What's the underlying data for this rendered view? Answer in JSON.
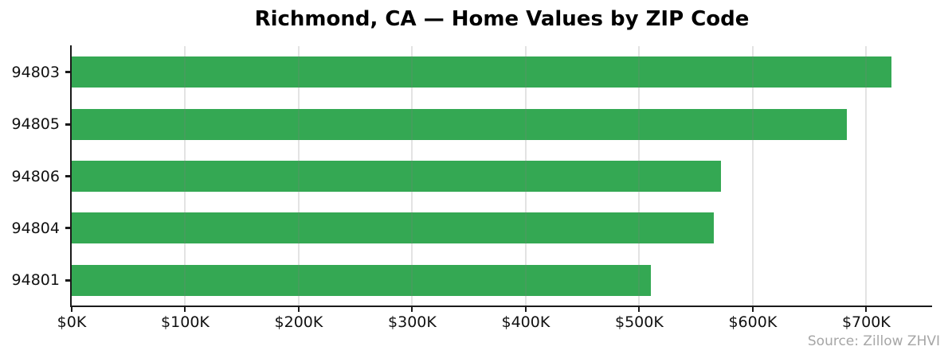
{
  "chart_data": {
    "type": "bar",
    "orientation": "horizontal",
    "title": "Richmond, CA — Home Values by ZIP Code",
    "categories": [
      "94803",
      "94805",
      "94806",
      "94804",
      "94801"
    ],
    "values": [
      722000,
      683000,
      572000,
      566000,
      510000
    ],
    "xlabel": "",
    "ylabel": "",
    "xlim": [
      0,
      758000
    ],
    "xticks": [
      0,
      100000,
      200000,
      300000,
      400000,
      500000,
      600000,
      700000
    ],
    "xtick_labels": [
      "$0K",
      "$100K",
      "$200K",
      "$300K",
      "$400K",
      "$500K",
      "$600K",
      "$700K"
    ],
    "grid": true,
    "legend": false,
    "source_note": "Source: Zillow ZHVI"
  },
  "colors": {
    "bar": "#34a853",
    "axis": "#1a1a1a",
    "grid": "rgba(128,128,128,0.22)",
    "tick_text": "#111111",
    "source_text": "#a6a6a6",
    "background": "#ffffff"
  }
}
